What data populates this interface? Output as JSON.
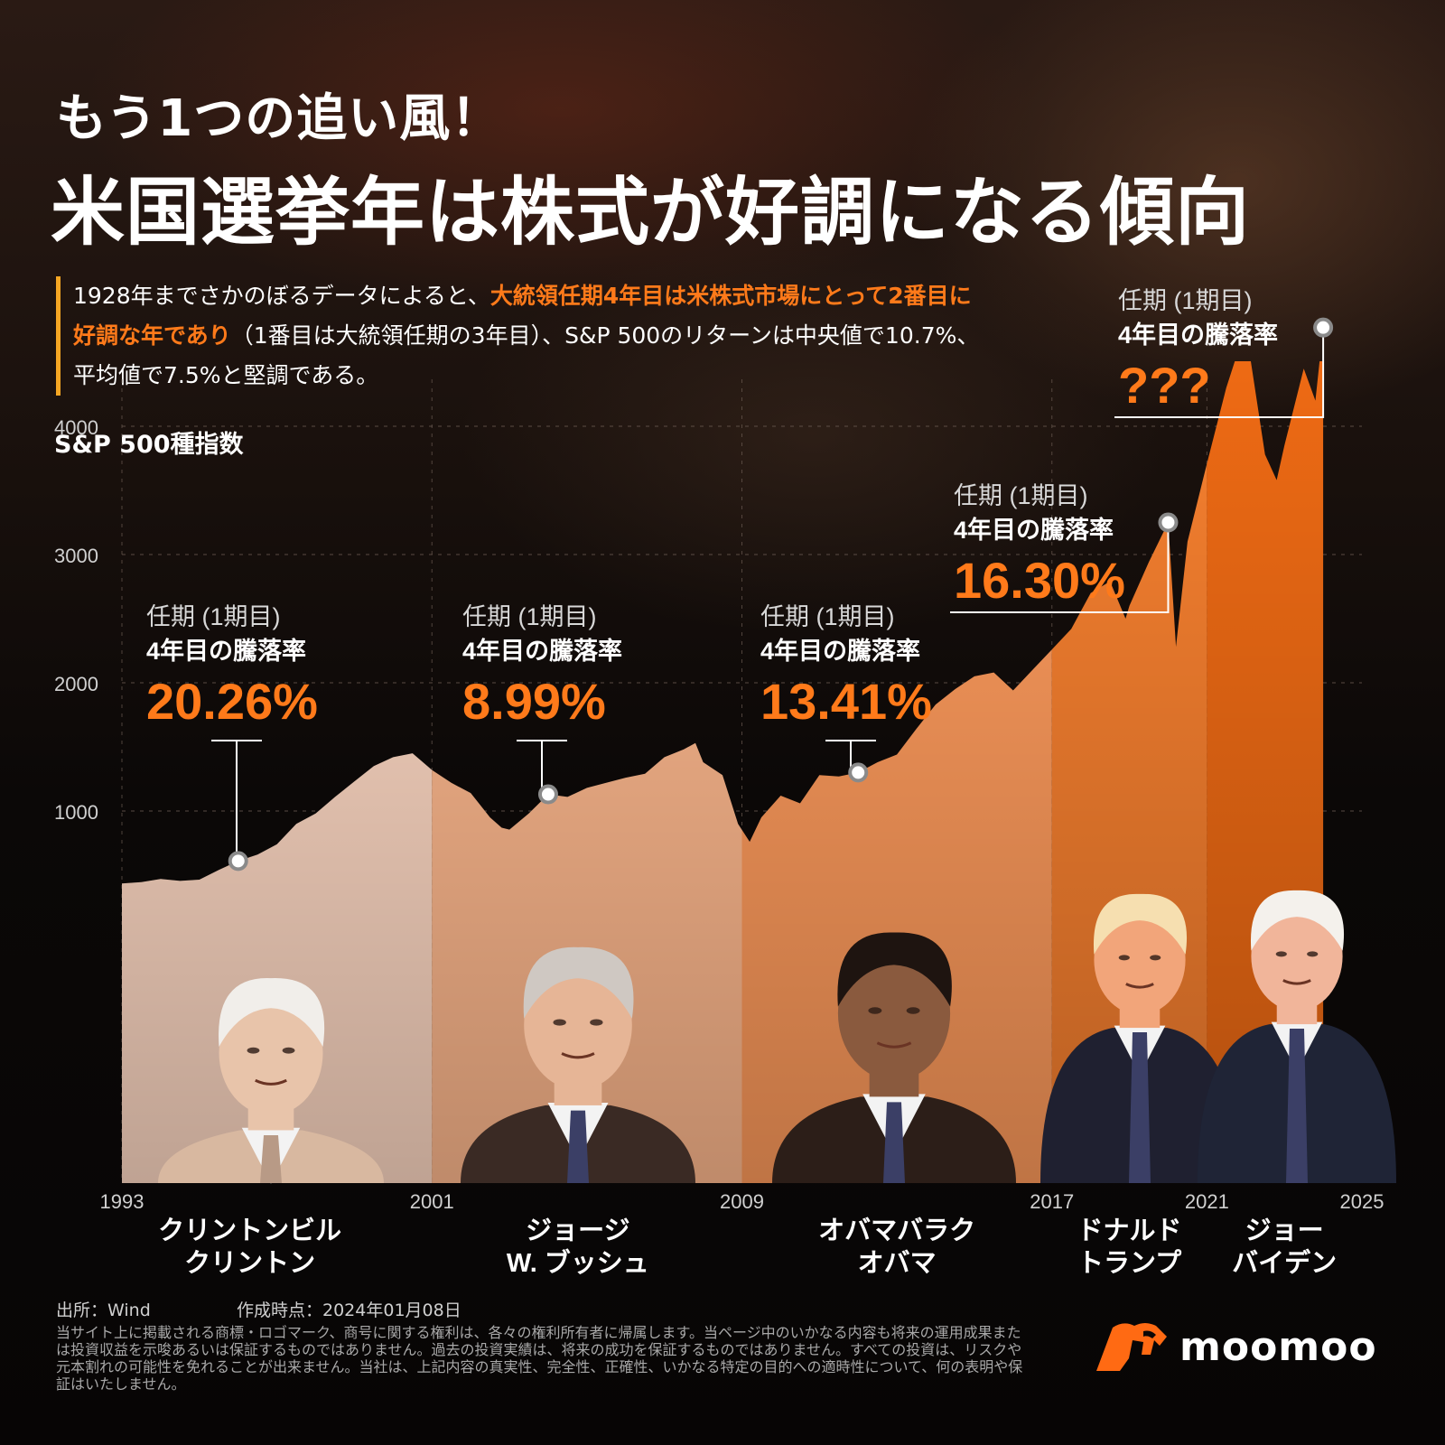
{
  "title_line1": "もう1つの追い風！",
  "title_line2": "米国選挙年は株式が好調になる傾向",
  "intro": {
    "part1": "1928年までさかのぼるデータによると、",
    "highlight": "大統領任期4年目は米株式市場にとって2番目に好調な年であり",
    "part2": "（1番目は大統領任期の3年目）、S&P 500のリターンは中央値で10.7%、平均値で7.5%と堅調である。"
  },
  "chart_data": {
    "type": "area",
    "ylabel": "S&P 500種指数",
    "yticks": [
      1000,
      2000,
      3000,
      4000
    ],
    "ylim": [
      0,
      4800
    ],
    "xlim": [
      1993,
      2025
    ],
    "xticks": [
      "1993",
      "2001",
      "2009",
      "2017",
      "2021",
      "2025"
    ],
    "series": {
      "x": [
        1993.0,
        1993.5,
        1994.0,
        1994.5,
        1995.0,
        1995.5,
        1996.0,
        1996.5,
        1997.0,
        1997.5,
        1998.0,
        1998.5,
        1999.0,
        1999.5,
        2000.0,
        2000.5,
        2001.0,
        2001.5,
        2002.0,
        2002.5,
        2002.8,
        2003.0,
        2003.5,
        2004.0,
        2004.5,
        2005.0,
        2005.5,
        2006.0,
        2006.5,
        2007.0,
        2007.5,
        2007.8,
        2008.0,
        2008.5,
        2008.9,
        2009.2,
        2009.5,
        2010.0,
        2010.5,
        2011.0,
        2011.5,
        2012.0,
        2012.5,
        2013.0,
        2013.5,
        2014.0,
        2014.5,
        2015.0,
        2015.5,
        2016.0,
        2016.5,
        2017.0,
        2017.5,
        2018.0,
        2018.5,
        2018.9,
        2019.0,
        2019.5,
        2020.0,
        2020.2,
        2020.5,
        2021.0,
        2021.5,
        2022.0,
        2022.5,
        2022.8,
        2023.0,
        2023.5,
        2023.8,
        2024.0
      ],
      "y": [
        435,
        445,
        470,
        455,
        465,
        540,
        610,
        660,
        740,
        900,
        980,
        1110,
        1230,
        1350,
        1420,
        1450,
        1320,
        1220,
        1140,
        950,
        870,
        855,
        980,
        1130,
        1110,
        1180,
        1220,
        1260,
        1290,
        1420,
        1480,
        1530,
        1380,
        1280,
        900,
        760,
        950,
        1120,
        1060,
        1280,
        1270,
        1300,
        1380,
        1440,
        1640,
        1830,
        1950,
        2050,
        2080,
        1940,
        2100,
        2260,
        2420,
        2700,
        2790,
        2500,
        2600,
        2940,
        3250,
        2280,
        3100,
        3710,
        4300,
        4770,
        3780,
        3580,
        3850,
        4450,
        4200,
        4770
      ]
    },
    "segments": [
      {
        "start": 1993,
        "end": 2001,
        "color": "#ffd9c4",
        "name": "クリントンビル\nクリントン"
      },
      {
        "start": 2001,
        "end": 2009,
        "color": "#ffb98e",
        "name": "ジョージ\nW. ブッシュ"
      },
      {
        "start": 2009,
        "end": 2017,
        "color": "#ff9b5c",
        "name": "オバマバラク\nオバマ"
      },
      {
        "start": 2017,
        "end": 2021,
        "color": "#f7802f",
        "name": "ドナルド\nトランプ"
      },
      {
        "start": 2021,
        "end": 2025,
        "color": "#ee6a14",
        "name": "ジョー\nバイデン"
      }
    ],
    "annotations": [
      {
        "line1": "任期 (1期目)",
        "line2": "4年目の騰落率",
        "value": "20.26%",
        "x": 1996.0,
        "y": 610
      },
      {
        "line1": "任期 (1期目)",
        "line2": "4年目の騰落率",
        "value": "8.99%",
        "x": 2004.0,
        "y": 1130
      },
      {
        "line1": "任期 (1期目)",
        "line2": "4年目の騰落率",
        "value": "13.41%",
        "x": 2012.0,
        "y": 1300
      },
      {
        "line1": "任期 (1期目)",
        "line2": "4年目の騰落率",
        "value": "16.30%",
        "x": 2020.0,
        "y": 3250
      },
      {
        "line1": "任期 (1期目)",
        "line2": "4年目の騰落率",
        "value": "???",
        "x": 2024.0,
        "y": 4770
      }
    ]
  },
  "footer": {
    "source": "出所：Wind",
    "created": "作成時点：2024年01月08日",
    "disclaimer": "当サイト上に掲載される商標・ロゴマーク、商号に関する権利は、各々の権利所有者に帰属します。当ページ中のいかなる内容も将来の運用成果または投資収益を示唆あるいは保証するものではありません。過去の投資実績は、将来の成功を保証するものではありません。すべての投資は、リスクや元本割れの可能性を免れることが出来ません。当社は、上記内容の真実性、完全性、正確性、いかなる特定の目的への適時性について、何の表明や保証はいたしません。",
    "brand": "moomoo",
    "brand_color": "#ff6a13",
    "accent_color": "#ff7a1a"
  }
}
